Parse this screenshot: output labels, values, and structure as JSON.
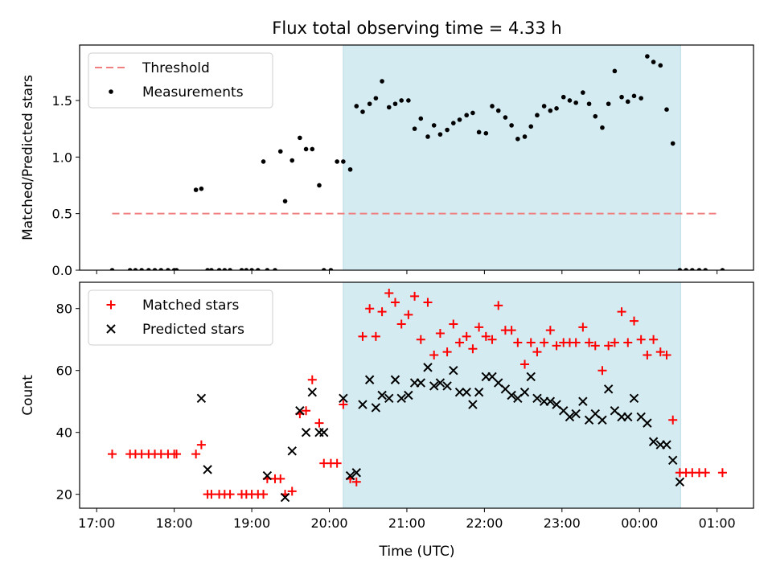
{
  "chart_data": {
    "type": "scatter",
    "title": "Flux total observing time = 4.33 h",
    "xlabel": "Time (UTC)",
    "x_tick_labels": [
      "17:00",
      "18:00",
      "19:00",
      "20:00",
      "21:00",
      "22:00",
      "23:00",
      "00:00",
      "01:00"
    ],
    "x_tick_hours": [
      17,
      18,
      19,
      20,
      21,
      22,
      23,
      24,
      25
    ],
    "x_range_hours": [
      16.78,
      25.47
    ],
    "observing_window_hours": [
      20.18,
      24.53
    ],
    "colors": {
      "window": "#d3ebf1",
      "threshold": "#f08080",
      "matched": "#ff0000",
      "predicted": "#000000"
    },
    "panels": [
      {
        "ylabel": "Matched/Predicted stars",
        "ylim": [
          0,
          1.99
        ],
        "y_ticks": [
          0.0,
          0.5,
          1.0,
          1.5
        ],
        "y_tick_labels": [
          "0.0",
          "0.5",
          "1.0",
          "1.5"
        ],
        "legend_position": "upper-left",
        "threshold": {
          "name": "Threshold",
          "value": 0.5,
          "x_range": [
            17.2,
            25.0
          ]
        },
        "series": [
          {
            "name": "Measurements",
            "marker": "dot",
            "x": [
              17.2,
              17.43,
              17.5,
              17.58,
              17.67,
              17.75,
              17.83,
              17.92,
              18.0,
              18.03,
              18.28,
              18.35,
              18.43,
              18.48,
              18.58,
              18.65,
              18.72,
              18.87,
              18.93,
              19.0,
              19.08,
              19.15,
              19.2,
              19.3,
              19.37,
              19.43,
              19.52,
              19.62,
              19.7,
              19.78,
              19.87,
              19.93,
              20.02,
              20.1,
              20.18,
              20.27,
              20.35,
              20.43,
              20.52,
              20.6,
              20.68,
              20.77,
              20.85,
              20.93,
              21.02,
              21.1,
              21.18,
              21.27,
              21.35,
              21.43,
              21.52,
              21.6,
              21.68,
              21.77,
              21.85,
              21.93,
              22.02,
              22.1,
              22.18,
              22.27,
              22.35,
              22.43,
              22.52,
              22.6,
              22.68,
              22.77,
              22.85,
              22.93,
              23.02,
              23.1,
              23.18,
              23.27,
              23.35,
              23.43,
              23.52,
              23.6,
              23.68,
              23.77,
              23.85,
              23.93,
              24.02,
              24.1,
              24.18,
              24.27,
              24.35,
              24.43,
              24.52,
              24.6,
              24.68,
              24.77,
              24.85,
              25.07
            ],
            "y": [
              0.0,
              0.0,
              0.0,
              0.0,
              0.0,
              0.0,
              0.0,
              0.0,
              0.0,
              0.0,
              0.71,
              0.72,
              0.0,
              0.0,
              0.0,
              0.0,
              0.0,
              0.0,
              0.0,
              0.0,
              0.0,
              0.96,
              0.0,
              0.0,
              1.05,
              0.61,
              0.97,
              1.17,
              1.07,
              1.07,
              0.75,
              0.0,
              0.0,
              0.96,
              0.96,
              0.89,
              1.45,
              1.4,
              1.47,
              1.52,
              1.67,
              1.44,
              1.47,
              1.5,
              1.5,
              1.25,
              1.34,
              1.18,
              1.28,
              1.2,
              1.24,
              1.3,
              1.33,
              1.37,
              1.39,
              1.22,
              1.21,
              1.45,
              1.41,
              1.35,
              1.28,
              1.16,
              1.18,
              1.27,
              1.37,
              1.45,
              1.41,
              1.43,
              1.53,
              1.5,
              1.48,
              1.57,
              1.47,
              1.36,
              1.26,
              1.47,
              1.76,
              1.53,
              1.49,
              1.54,
              1.52,
              1.89,
              1.84,
              1.81,
              1.42,
              1.12,
              0.0,
              0.0,
              0.0,
              0.0,
              0.0,
              0.0
            ]
          }
        ]
      },
      {
        "ylabel": "Count",
        "ylim": [
          15.5,
          88.5
        ],
        "y_ticks": [
          20,
          40,
          60,
          80
        ],
        "y_tick_labels": [
          "20",
          "40",
          "60",
          "80"
        ],
        "legend_position": "upper-left",
        "series": [
          {
            "name": "Matched stars",
            "marker": "plus",
            "x": [
              17.2,
              17.43,
              17.5,
              17.58,
              17.67,
              17.75,
              17.83,
              17.92,
              18.0,
              18.03,
              18.28,
              18.35,
              18.43,
              18.48,
              18.58,
              18.65,
              18.72,
              18.87,
              18.93,
              19.0,
              19.08,
              19.15,
              19.2,
              19.3,
              19.37,
              19.43,
              19.52,
              19.62,
              19.7,
              19.78,
              19.87,
              19.93,
              20.02,
              20.1,
              20.18,
              20.27,
              20.35,
              20.43,
              20.52,
              20.6,
              20.68,
              20.77,
              20.85,
              20.93,
              21.02,
              21.1,
              21.18,
              21.27,
              21.35,
              21.43,
              21.52,
              21.6,
              21.68,
              21.77,
              21.85,
              21.93,
              22.02,
              22.1,
              22.18,
              22.27,
              22.35,
              22.43,
              22.52,
              22.6,
              22.68,
              22.77,
              22.85,
              22.93,
              23.02,
              23.1,
              23.18,
              23.27,
              23.35,
              23.43,
              23.52,
              23.6,
              23.68,
              23.77,
              23.85,
              23.93,
              24.02,
              24.1,
              24.18,
              24.27,
              24.35,
              24.43,
              24.52,
              24.6,
              24.68,
              24.77,
              24.85,
              25.07
            ],
            "y": [
              33,
              33,
              33,
              33,
              33,
              33,
              33,
              33,
              33,
              33,
              33,
              36,
              20,
              20,
              20,
              20,
              20,
              20,
              20,
              20,
              20,
              20,
              25,
              25,
              25,
              20,
              21,
              46,
              47,
              57,
              43,
              30,
              30,
              30,
              49,
              25,
              24,
              71,
              80,
              71,
              79,
              85,
              82,
              75,
              78,
              84,
              70,
              82,
              65,
              72,
              66,
              75,
              69,
              71,
              67,
              74,
              71,
              70,
              81,
              73,
              73,
              69,
              62,
              69,
              66,
              69,
              73,
              68,
              69,
              69,
              69,
              74,
              69,
              68,
              60,
              68,
              69,
              79,
              69,
              76,
              70,
              65,
              70,
              66,
              65,
              44,
              27,
              27,
              27,
              27,
              27,
              27
            ]
          },
          {
            "name": "Predicted stars",
            "marker": "x",
            "x": [
              18.35,
              18.43,
              19.2,
              19.43,
              19.52,
              19.62,
              19.7,
              19.78,
              19.87,
              19.93,
              20.18,
              20.27,
              20.35,
              20.43,
              20.52,
              20.6,
              20.68,
              20.77,
              20.85,
              20.93,
              21.02,
              21.1,
              21.18,
              21.27,
              21.35,
              21.43,
              21.52,
              21.6,
              21.68,
              21.77,
              21.85,
              21.93,
              22.02,
              22.1,
              22.18,
              22.27,
              22.35,
              22.43,
              22.52,
              22.6,
              22.68,
              22.77,
              22.85,
              22.93,
              23.02,
              23.1,
              23.18,
              23.27,
              23.35,
              23.43,
              23.52,
              23.6,
              23.68,
              23.77,
              23.85,
              23.93,
              24.02,
              24.1,
              24.18,
              24.27,
              24.35,
              24.43,
              24.52
            ],
            "y": [
              51,
              28,
              26,
              19,
              34,
              47,
              40,
              53,
              40,
              40,
              51,
              26,
              27,
              49,
              57,
              48,
              52,
              51,
              57,
              51,
              52,
              56,
              56,
              61,
              55,
              56,
              55,
              60,
              53,
              53,
              49,
              53,
              58,
              58,
              56,
              54,
              52,
              51,
              53,
              58,
              51,
              50,
              50,
              49,
              47,
              45,
              46,
              50,
              44,
              46,
              44,
              54,
              47,
              45,
              45,
              51,
              45,
              43,
              37,
              36,
              36,
              31,
              24
            ]
          }
        ]
      }
    ]
  }
}
